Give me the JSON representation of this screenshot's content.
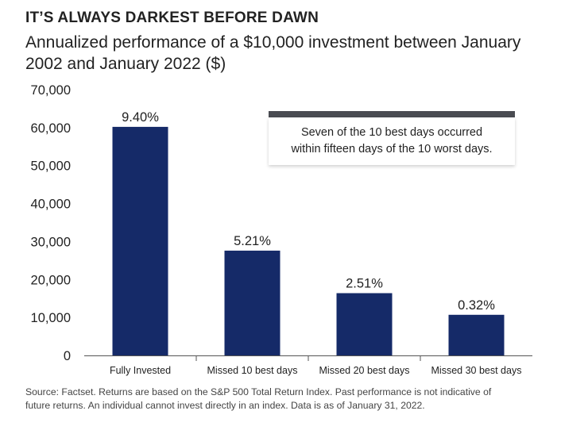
{
  "header": {
    "kicker": "IT’S ALWAYS DARKEST BEFORE DAWN",
    "subtitle": "Annualized performance of a $10,000 investment between January 2002 and January 2022 ($)"
  },
  "callout": {
    "text_line1": "Seven of the 10 best days occurred",
    "text_line2": "within fifteen days of the 10 worst days."
  },
  "footnote": {
    "line1": "Source: Factset. Returns are based on the S&P 500 Total Return Index. Past performance is not indicative of",
    "line2": "future returns. An individual cannot invest directly in an index. Data is as of January 31, 2022."
  },
  "colors": {
    "bar": "#152a68",
    "axis": "#555555",
    "callout_bar": "#4a4c52"
  },
  "chart_data": {
    "type": "bar",
    "title": "Annualized performance of a $10,000 investment between January 2002 and January 2022 ($)",
    "categories": [
      "Fully Invested",
      "Missed 10 best days",
      "Missed 20 best days",
      "Missed 30 best days"
    ],
    "values": [
      60200,
      27600,
      16400,
      10700
    ],
    "data_labels": [
      "9.40%",
      "5.21%",
      "2.51%",
      "0.32%"
    ],
    "ylim": [
      0,
      70000
    ],
    "yticks": [
      0,
      10000,
      20000,
      30000,
      40000,
      50000,
      60000,
      70000
    ],
    "ytick_labels": [
      "0",
      "10,000",
      "20,000",
      "30,000",
      "40,000",
      "50,000",
      "60,000",
      "70,000"
    ],
    "xlabel": "",
    "ylabel": "",
    "grid": false
  }
}
